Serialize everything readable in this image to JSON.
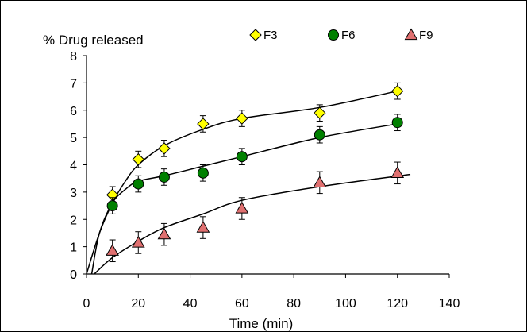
{
  "chart_data": {
    "type": "scatter",
    "ylabel": "% Drug released",
    "xlabel": "Time (min)",
    "xlim": [
      0,
      140
    ],
    "ylim": [
      0,
      8
    ],
    "x_ticks": [
      "0",
      "20",
      "40",
      "60",
      "80",
      "100",
      "120",
      "140"
    ],
    "y_ticks": [
      "0",
      "1",
      "2",
      "3",
      "4",
      "5",
      "6",
      "7",
      "8"
    ],
    "grid": false,
    "legend_position": "top",
    "series": [
      {
        "name": "F3",
        "marker": "diamond",
        "color": "#FFFF00",
        "x": [
          10,
          20,
          30,
          45,
          60,
          90,
          120
        ],
        "y": [
          2.9,
          4.2,
          4.6,
          5.5,
          5.7,
          5.9,
          6.7
        ],
        "error": [
          0.3,
          0.3,
          0.3,
          0.3,
          0.3,
          0.3,
          0.3
        ],
        "fit_curve": [
          [
            0,
            0
          ],
          [
            5,
            1.5
          ],
          [
            10,
            2.6
          ],
          [
            15,
            3.4
          ],
          [
            20,
            4.0
          ],
          [
            30,
            4.7
          ],
          [
            45,
            5.3
          ],
          [
            60,
            5.7
          ],
          [
            90,
            6.1
          ],
          [
            120,
            6.7
          ]
        ]
      },
      {
        "name": "F6",
        "marker": "circle",
        "color": "#008000",
        "x": [
          10,
          20,
          30,
          45,
          60,
          90,
          120
        ],
        "y": [
          2.5,
          3.3,
          3.55,
          3.7,
          4.3,
          5.1,
          5.55
        ],
        "error": [
          0.3,
          0.3,
          0.3,
          0.3,
          0.3,
          0.3,
          0.3
        ],
        "fit_curve": [
          [
            2,
            0
          ],
          [
            5,
            1.5
          ],
          [
            10,
            2.6
          ],
          [
            15,
            3.1
          ],
          [
            20,
            3.4
          ],
          [
            30,
            3.6
          ],
          [
            45,
            3.95
          ],
          [
            60,
            4.3
          ],
          [
            90,
            5.0
          ],
          [
            120,
            5.5
          ]
        ]
      },
      {
        "name": "F9",
        "marker": "triangle",
        "color": "#E07070",
        "x": [
          10,
          20,
          30,
          45,
          60,
          90,
          120
        ],
        "y": [
          0.85,
          1.15,
          1.45,
          1.7,
          2.4,
          3.35,
          3.7
        ],
        "error": [
          0.4,
          0.4,
          0.4,
          0.4,
          0.4,
          0.4,
          0.4
        ],
        "fit_curve": [
          [
            3,
            0
          ],
          [
            10,
            0.6
          ],
          [
            20,
            1.2
          ],
          [
            30,
            1.7
          ],
          [
            45,
            2.2
          ],
          [
            60,
            2.7
          ],
          [
            90,
            3.2
          ],
          [
            125,
            3.65
          ]
        ]
      }
    ]
  }
}
